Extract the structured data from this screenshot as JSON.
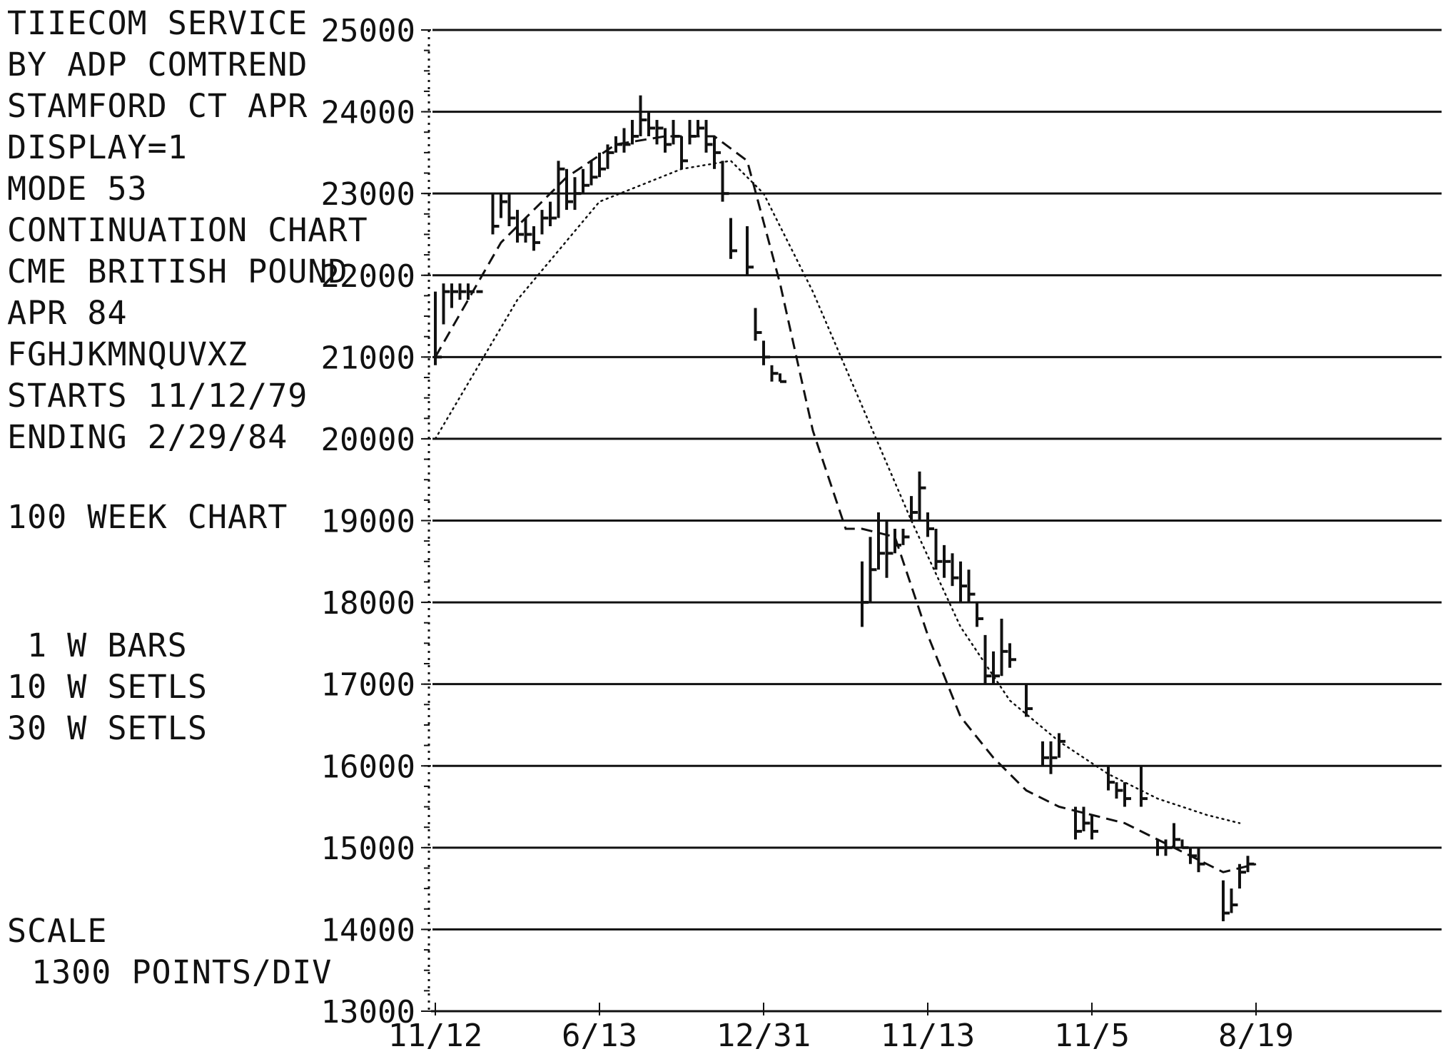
{
  "header_lines": [
    "TIIECOM SERVICE",
    "BY ADP COMTREND",
    "STAMFORD CT APR",
    "DISPLAY=1",
    "MODE 53",
    "CONTINUATION CHART",
    "CME BRITISH POUND",
    "APR 84",
    "FGHJKMNQUVXZ",
    "STARTS 11/12/79",
    "ENDING 2/29/84",
    "100 WEEK CHART",
    "1 W BARS",
    "10 W SETLS",
    "30 W SETLS",
    "SCALE",
    "1300  POINTS/DIV"
  ],
  "chart_data": {
    "type": "line",
    "title": "CME BRITISH POUND APR 84 CONTINUATION CHART",
    "ylim": [
      13000,
      25000
    ],
    "yticks": [
      "13000",
      "14000",
      "15000",
      "16000",
      "17000",
      "18000",
      "19000",
      "20000",
      "21000",
      "22000",
      "23000",
      "24000",
      "25000"
    ],
    "ytick_values": [
      13000,
      14000,
      15000,
      16000,
      17000,
      18000,
      19000,
      20000,
      21000,
      22000,
      23000,
      24000,
      25000
    ],
    "x_tick_labels": [
      "11/12",
      "6/13",
      "12/31",
      "11/13",
      "11/5",
      "8/19"
    ],
    "x_tick_weeks": [
      0,
      20,
      40,
      60,
      80,
      100
    ],
    "series": [
      {
        "name": "1 W BARS",
        "style": "bars",
        "bars": [
          [
            20900,
            21800,
            21000
          ],
          [
            21400,
            21900,
            21800
          ],
          [
            21600,
            21900,
            21800
          ],
          [
            21700,
            21900,
            21800
          ],
          [
            21700,
            21900,
            21800
          ],
          [
            21800,
            21800,
            21800
          ],
          [
            22500,
            23000,
            22600
          ],
          [
            22700,
            23000,
            22900
          ],
          [
            22600,
            23000,
            22700
          ],
          [
            22400,
            22800,
            22500
          ],
          [
            22400,
            22700,
            22500
          ],
          [
            22300,
            22600,
            22400
          ],
          [
            22500,
            22800,
            22700
          ],
          [
            22600,
            22900,
            22700
          ],
          [
            22700,
            23400,
            23300
          ],
          [
            22800,
            23300,
            22900
          ],
          [
            22800,
            23200,
            23000
          ],
          [
            23000,
            23300,
            23100
          ],
          [
            23100,
            23400,
            23200
          ],
          [
            23200,
            23500,
            23300
          ],
          [
            23300,
            23600,
            23500
          ],
          [
            23500,
            23700,
            23600
          ],
          [
            23500,
            23800,
            23600
          ],
          [
            23600,
            23900,
            23700
          ],
          [
            23700,
            24200,
            23900
          ],
          [
            23700,
            24000,
            23800
          ],
          [
            23600,
            23900,
            23800
          ],
          [
            23500,
            23800,
            23600
          ],
          [
            23600,
            23900,
            23700
          ],
          [
            23300,
            23700,
            23400
          ],
          [
            23600,
            23900,
            23700
          ],
          [
            23700,
            23900,
            23800
          ],
          [
            23500,
            23900,
            23600
          ],
          [
            23300,
            23700,
            23500
          ],
          [
            22900,
            23400,
            23000
          ],
          [
            22200,
            22700,
            22300
          ],
          [
            22000,
            22600,
            22100
          ],
          [
            21200,
            21600,
            21300
          ],
          [
            20900,
            21200,
            21000
          ],
          [
            20700,
            20900,
            20800
          ],
          [
            20700,
            20800,
            20700
          ],
          [
            17700,
            18500,
            18000
          ],
          [
            18000,
            18800,
            18400
          ],
          [
            18400,
            19100,
            18600
          ],
          [
            18300,
            19000,
            18600
          ],
          [
            18600,
            18900,
            18700
          ],
          [
            18700,
            18900,
            18800
          ],
          [
            19000,
            19300,
            19100
          ],
          [
            19000,
            19600,
            19400
          ],
          [
            18800,
            19100,
            18900
          ],
          [
            18400,
            18900,
            18500
          ],
          [
            18300,
            18700,
            18500
          ],
          [
            18200,
            18600,
            18300
          ],
          [
            18000,
            18500,
            18200
          ],
          [
            18000,
            18400,
            18100
          ],
          [
            17700,
            18000,
            17800
          ],
          [
            17000,
            17600,
            17100
          ],
          [
            17000,
            17400,
            17100
          ],
          [
            17100,
            17800,
            17400
          ],
          [
            17200,
            17500,
            17300
          ],
          [
            16600,
            17000,
            16700
          ],
          [
            16000,
            16300,
            16100
          ],
          [
            15900,
            16300,
            16100
          ],
          [
            16100,
            16400,
            16300
          ],
          [
            15100,
            15500,
            15200
          ],
          [
            15200,
            15500,
            15300
          ],
          [
            15100,
            15400,
            15200
          ],
          [
            15700,
            16000,
            15800
          ],
          [
            15600,
            15800,
            15700
          ],
          [
            15500,
            15800,
            15600
          ],
          [
            15500,
            16000,
            15600
          ],
          [
            14900,
            15100,
            15000
          ],
          [
            14900,
            15100,
            15000
          ],
          [
            15000,
            15300,
            15100
          ],
          [
            15000,
            15100,
            15000
          ],
          [
            14800,
            15000,
            14900
          ],
          [
            14700,
            15000,
            14800
          ],
          [
            14100,
            14600,
            14200
          ],
          [
            14200,
            14500,
            14300
          ],
          [
            14500,
            14800,
            14700
          ],
          [
            14700,
            14900,
            14800
          ]
        ],
        "bar_weeks": [
          0,
          1,
          2,
          3,
          4,
          5,
          7,
          8,
          9,
          10,
          11,
          12,
          13,
          14,
          15,
          16,
          17,
          18,
          19,
          20,
          21,
          22,
          23,
          24,
          25,
          26,
          27,
          28,
          29,
          30,
          31,
          32,
          33,
          34,
          35,
          36,
          38,
          39,
          40,
          41,
          42,
          52,
          53,
          54,
          55,
          56,
          57,
          58,
          59,
          60,
          61,
          62,
          63,
          64,
          65,
          66,
          67,
          68,
          69,
          70,
          72,
          74,
          75,
          76,
          78,
          79,
          80,
          82,
          83,
          84,
          86,
          88,
          89,
          90,
          91,
          92,
          93,
          96,
          97,
          98,
          99
        ]
      },
      {
        "name": "10 W SETLS",
        "style": "dashed",
        "x": [
          0,
          8,
          16,
          22,
          28,
          34,
          38,
          42,
          46,
          50,
          52,
          56,
          60,
          64,
          68,
          72,
          76,
          80,
          84,
          88,
          92,
          96,
          100
        ],
        "y": [
          21000,
          22400,
          23200,
          23600,
          23700,
          23700,
          23400,
          21900,
          20100,
          18900,
          18900,
          18800,
          17600,
          16600,
          16100,
          15700,
          15500,
          15400,
          15300,
          15100,
          14900,
          14700,
          14800
        ]
      },
      {
        "name": "30 W SETLS",
        "style": "dotted",
        "x": [
          0,
          10,
          20,
          30,
          36,
          40,
          46,
          52,
          58,
          64,
          70,
          76,
          82,
          88,
          94,
          98
        ],
        "y": [
          20000,
          21700,
          22900,
          23300,
          23400,
          23000,
          21800,
          20400,
          19000,
          17700,
          16800,
          16300,
          15900,
          15600,
          15400,
          15300
        ]
      }
    ],
    "grid": true
  }
}
